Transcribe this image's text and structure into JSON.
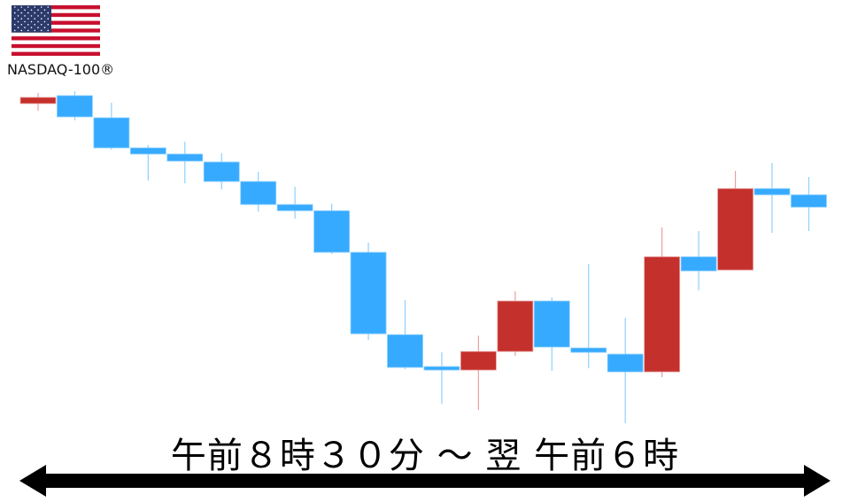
{
  "index_label": "NASDAQ-100®",
  "flag_icon": "us-flag",
  "caption": "午前８時３０分 ～ 翌 午前６時",
  "colors": {
    "up": "#c4302b",
    "down": "#36aaff",
    "up_wick": "#e8a0a0",
    "down_wick": "#8dd0ff",
    "arrow": "#000000"
  },
  "chart_data": {
    "type": "candlestick",
    "title": "",
    "xlabel": "",
    "ylabel": "",
    "axes_shown": false,
    "grid": false,
    "note_units": "relative price levels (no axis printed)",
    "ylim": [
      0,
      420
    ],
    "candles": [
      {
        "open": 383,
        "high": 395,
        "low": 375,
        "close": 390
      },
      {
        "open": 392,
        "high": 397,
        "low": 364,
        "close": 368
      },
      {
        "open": 367,
        "high": 384,
        "low": 331,
        "close": 333
      },
      {
        "open": 333,
        "high": 336,
        "low": 296,
        "close": 326
      },
      {
        "open": 326,
        "high": 340,
        "low": 293,
        "close": 318
      },
      {
        "open": 317,
        "high": 327,
        "low": 286,
        "close": 295
      },
      {
        "open": 295,
        "high": 306,
        "low": 261,
        "close": 269
      },
      {
        "open": 269,
        "high": 289,
        "low": 253,
        "close": 262
      },
      {
        "open": 262,
        "high": 270,
        "low": 213,
        "close": 215
      },
      {
        "open": 215,
        "high": 226,
        "low": 116,
        "close": 123
      },
      {
        "open": 122,
        "high": 161,
        "low": 83,
        "close": 85
      },
      {
        "open": 86,
        "high": 102,
        "low": 44,
        "close": 82
      },
      {
        "open": 82,
        "high": 121,
        "low": 37,
        "close": 103
      },
      {
        "open": 103,
        "high": 171,
        "low": 98,
        "close": 160
      },
      {
        "open": 160,
        "high": 164,
        "low": 81,
        "close": 108
      },
      {
        "open": 107,
        "high": 202,
        "low": 84,
        "close": 102
      },
      {
        "open": 100,
        "high": 141,
        "low": 22,
        "close": 80
      },
      {
        "open": 80,
        "high": 243,
        "low": 74,
        "close": 210
      },
      {
        "open": 210,
        "high": 239,
        "low": 172,
        "close": 194
      },
      {
        "open": 195,
        "high": 307,
        "low": 195,
        "close": 287
      },
      {
        "open": 287,
        "high": 316,
        "low": 237,
        "close": 280
      },
      {
        "open": 280,
        "high": 300,
        "low": 239,
        "close": 266
      }
    ]
  }
}
